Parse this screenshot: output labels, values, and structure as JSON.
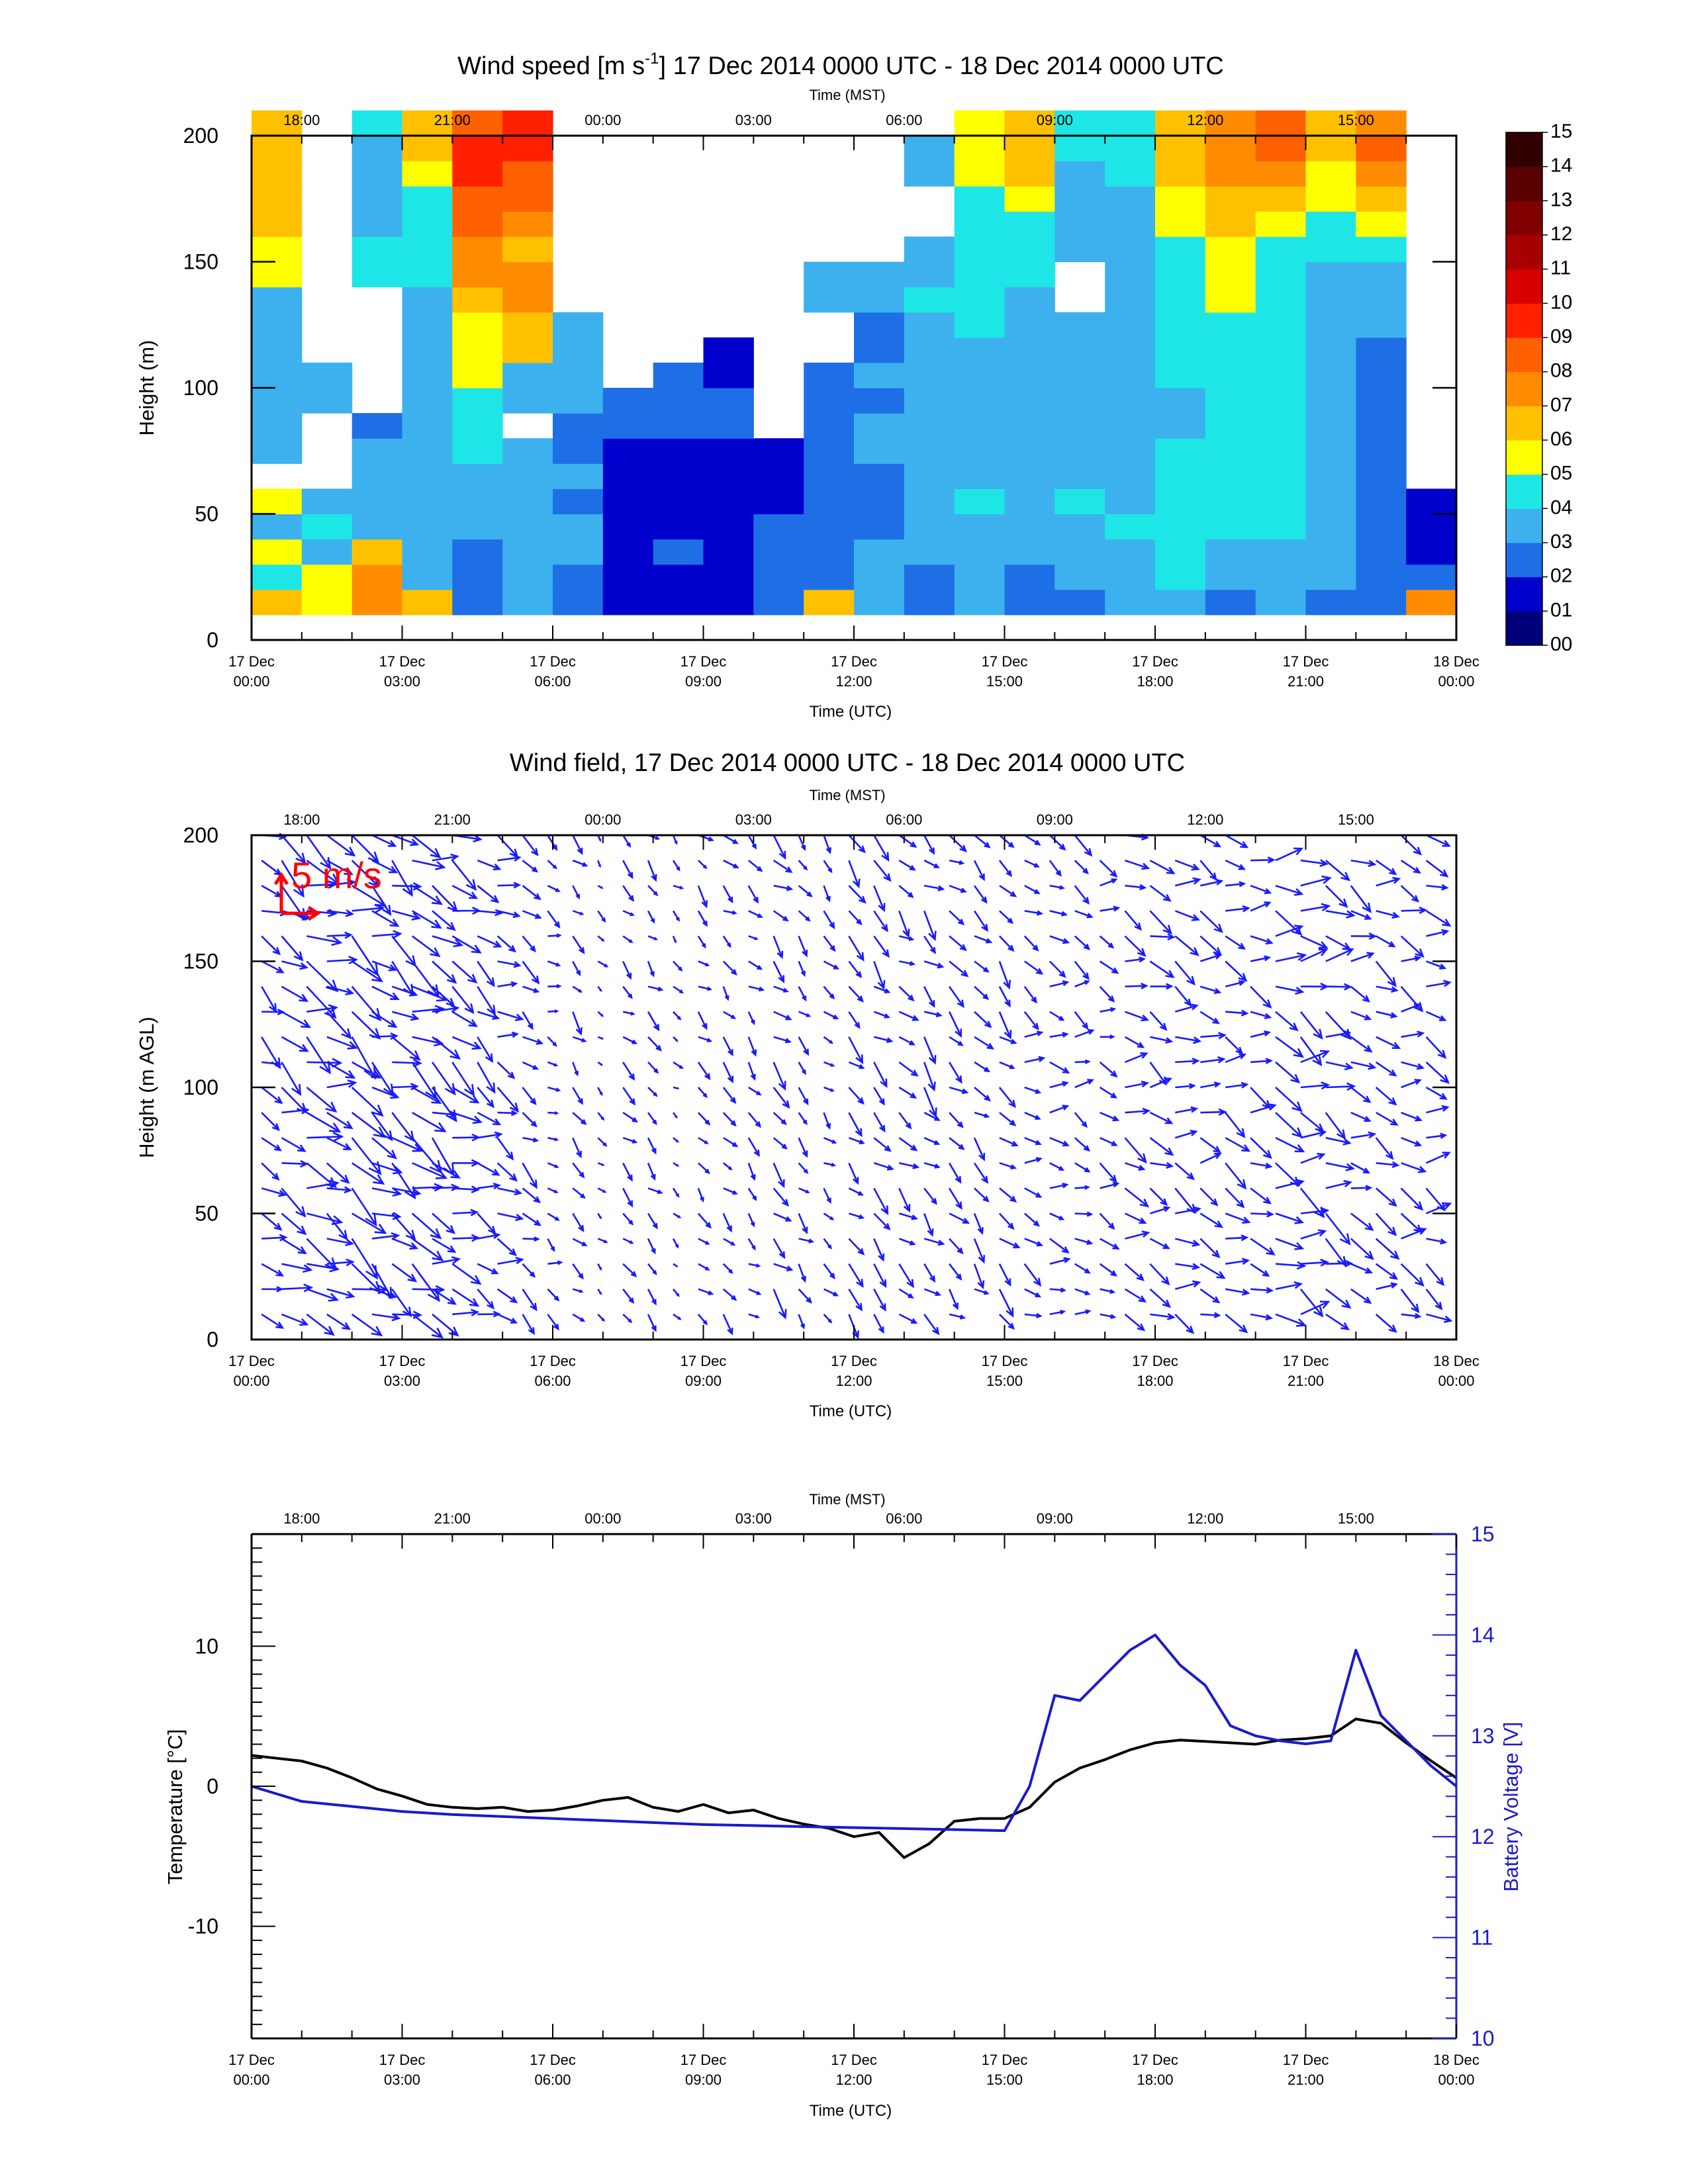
{
  "times": {
    "utc_ticks": [
      {
        "day": "17 Dec",
        "time": "00:00"
      },
      {
        "day": "17 Dec",
        "time": "03:00"
      },
      {
        "day": "17 Dec",
        "time": "06:00"
      },
      {
        "day": "17 Dec",
        "time": "09:00"
      },
      {
        "day": "17 Dec",
        "time": "12:00"
      },
      {
        "day": "17 Dec",
        "time": "15:00"
      },
      {
        "day": "17 Dec",
        "time": "18:00"
      },
      {
        "day": "17 Dec",
        "time": "21:00"
      },
      {
        "day": "18 Dec",
        "time": "00:00"
      }
    ],
    "mst_ticks": [
      "18:00",
      "21:00",
      "00:00",
      "03:00",
      "06:00",
      "09:00",
      "12:00",
      "15:00"
    ],
    "utc_label": "Time (UTC)",
    "mst_label": "Time (MST)"
  },
  "chart_data": [
    {
      "type": "heatmap",
      "title_pre": "Wind speed [m s",
      "title_sup": "-1",
      "title_post": "] 17 Dec 2014 0000 UTC - 18 Dec 2014 0000 UTC",
      "xlabel": "Time (UTC)",
      "x2label": "Time (MST)",
      "ylabel": "Height (m)",
      "xlim_hours_utc": [
        0,
        24
      ],
      "ylim": [
        0,
        200
      ],
      "yticks": [
        "0",
        "50",
        "100",
        "150",
        "200"
      ],
      "colorbar": {
        "labels": [
          "00",
          "01",
          "02",
          "03",
          "04",
          "05",
          "06",
          "07",
          "08",
          "09",
          "10",
          "11",
          "12",
          "13",
          "14",
          "15"
        ],
        "colors": [
          "#00007a",
          "#0000cc",
          "#1e6fe6",
          "#3db1ee",
          "#1ee6e6",
          "#ffff00",
          "#ffc000",
          "#ff8c00",
          "#ff6000",
          "#ff2000",
          "#d80000",
          "#a80000",
          "#800000",
          "#5a0000",
          "#300000"
        ]
      },
      "rows_height_m": [
        10,
        20,
        30,
        40,
        50,
        60,
        70,
        80,
        90,
        100,
        110,
        120,
        130,
        140,
        150,
        160,
        170,
        180,
        190,
        200
      ],
      "columns_hour_utc": [
        0,
        1,
        2,
        3,
        4,
        5,
        6,
        7,
        8,
        9,
        10,
        11,
        12,
        13,
        14,
        15,
        16,
        17,
        18,
        19,
        20,
        21,
        22,
        23
      ],
      "speed_matrix_m_s": [
        [
          6,
          5,
          7,
          6,
          2,
          3,
          2,
          1,
          1,
          1,
          2,
          6,
          3,
          2,
          3,
          2,
          2,
          3,
          3,
          2,
          3,
          2,
          2,
          7
        ],
        [
          4,
          5,
          7,
          3,
          2,
          3,
          2,
          1,
          1,
          1,
          2,
          2,
          3,
          2,
          3,
          2,
          3,
          3,
          4,
          3,
          3,
          3,
          2,
          2
        ],
        [
          5,
          3,
          6,
          3,
          2,
          3,
          3,
          1,
          2,
          1,
          2,
          2,
          3,
          3,
          3,
          3,
          3,
          3,
          4,
          3,
          3,
          3,
          2,
          1
        ],
        [
          3,
          4,
          3,
          3,
          3,
          3,
          3,
          1,
          1,
          1,
          2,
          2,
          2,
          3,
          3,
          3,
          3,
          4,
          4,
          4,
          4,
          3,
          2,
          1
        ],
        [
          5,
          3,
          3,
          3,
          3,
          3,
          2,
          1,
          1,
          1,
          1,
          2,
          2,
          3,
          4,
          3,
          4,
          3,
          4,
          4,
          4,
          3,
          2,
          1
        ],
        [
          0,
          0,
          3,
          3,
          3,
          3,
          3,
          1,
          1,
          1,
          1,
          2,
          2,
          3,
          3,
          3,
          3,
          3,
          4,
          4,
          4,
          3,
          2,
          0
        ],
        [
          3,
          0,
          3,
          3,
          4,
          3,
          2,
          1,
          1,
          1,
          1,
          2,
          3,
          3,
          3,
          3,
          3,
          3,
          4,
          4,
          4,
          3,
          2,
          0
        ],
        [
          3,
          0,
          2,
          3,
          4,
          0,
          2,
          2,
          2,
          2,
          0,
          2,
          3,
          3,
          3,
          3,
          3,
          3,
          3,
          4,
          4,
          3,
          2,
          0
        ],
        [
          3,
          3,
          0,
          3,
          4,
          3,
          3,
          2,
          2,
          2,
          0,
          2,
          2,
          3,
          3,
          3,
          3,
          3,
          3,
          4,
          4,
          3,
          2,
          0
        ],
        [
          3,
          3,
          0,
          3,
          5,
          3,
          3,
          0,
          2,
          1,
          0,
          2,
          3,
          3,
          3,
          3,
          3,
          3,
          4,
          4,
          4,
          3,
          2,
          0
        ],
        [
          3,
          0,
          0,
          3,
          5,
          6,
          3,
          0,
          0,
          1,
          0,
          0,
          2,
          3,
          3,
          3,
          3,
          3,
          4,
          4,
          4,
          3,
          2,
          0
        ],
        [
          3,
          0,
          0,
          3,
          5,
          6,
          3,
          0,
          0,
          0,
          0,
          0,
          2,
          3,
          4,
          3,
          3,
          3,
          4,
          4,
          4,
          3,
          3,
          0
        ],
        [
          3,
          0,
          0,
          3,
          6,
          7,
          0,
          0,
          0,
          0,
          0,
          3,
          3,
          4,
          4,
          3,
          0,
          3,
          4,
          5,
          4,
          3,
          3,
          0
        ],
        [
          5,
          0,
          4,
          4,
          7,
          7,
          0,
          0,
          0,
          0,
          0,
          3,
          3,
          3,
          4,
          4,
          0,
          3,
          4,
          5,
          4,
          3,
          3,
          0
        ],
        [
          5,
          0,
          4,
          4,
          7,
          6,
          0,
          0,
          0,
          0,
          0,
          0,
          0,
          3,
          4,
          4,
          3,
          3,
          4,
          5,
          4,
          4,
          4,
          0
        ],
        [
          6,
          0,
          3,
          4,
          8,
          7,
          0,
          0,
          0,
          0,
          0,
          0,
          0,
          0,
          4,
          4,
          3,
          3,
          5,
          6,
          5,
          4,
          5,
          0
        ],
        [
          6,
          0,
          3,
          4,
          8,
          8,
          0,
          0,
          0,
          0,
          0,
          0,
          0,
          0,
          4,
          5,
          3,
          3,
          5,
          6,
          6,
          5,
          6,
          0
        ],
        [
          6,
          0,
          3,
          5,
          9,
          8,
          0,
          0,
          0,
          0,
          0,
          0,
          0,
          3,
          5,
          6,
          3,
          4,
          6,
          7,
          7,
          5,
          7,
          0
        ],
        [
          6,
          0,
          3,
          6,
          9,
          9,
          0,
          0,
          0,
          0,
          0,
          0,
          0,
          3,
          5,
          6,
          4,
          4,
          6,
          7,
          8,
          6,
          8,
          0
        ],
        [
          6,
          0,
          4,
          6,
          8,
          9,
          0,
          0,
          0,
          0,
          0,
          0,
          0,
          0,
          5,
          6,
          4,
          4,
          6,
          7,
          8,
          6,
          7,
          0
        ]
      ]
    },
    {
      "type": "scatter",
      "marker": "arrow",
      "title": "Wind field, 17 Dec 2014 0000 UTC - 18 Dec 2014 0000 UTC",
      "xlabel": "Time (UTC)",
      "x2label": "Time (MST)",
      "ylabel": "Height (m AGL)",
      "xlim_hours_utc": [
        0,
        24
      ],
      "ylim": [
        0,
        200
      ],
      "yticks": [
        "0",
        "50",
        "100",
        "150",
        "200"
      ],
      "legend": "5 m/s",
      "legend_position": "top-left",
      "series": [
        {
          "color": "#1a1aff",
          "x_hour_utc": [
            0.2,
            0.6,
            1.1,
            1.5,
            2.0,
            2.4,
            2.8,
            3.2,
            3.6,
            4.0,
            4.5,
            4.9,
            5.4,
            5.9,
            6.4,
            6.9,
            7.4,
            7.9,
            8.4,
            8.9,
            9.4,
            9.9,
            10.4,
            10.9,
            11.4,
            11.9,
            12.4,
            12.9,
            13.4,
            13.9,
            14.4,
            14.9,
            15.4,
            15.9,
            16.4,
            16.9,
            17.4,
            17.9,
            18.4,
            18.9,
            19.4,
            19.9,
            20.4,
            20.9,
            21.4,
            21.9,
            22.4,
            22.9,
            23.4
          ],
          "speed_m_s": [
            4,
            5,
            6,
            5,
            6,
            5,
            5,
            6,
            5,
            5,
            4,
            4,
            3,
            2,
            2,
            1,
            2,
            2,
            1,
            2,
            2,
            2,
            3,
            2,
            2,
            3,
            3,
            3,
            3,
            3,
            3,
            3,
            3,
            3,
            3,
            3,
            4,
            4,
            4,
            4,
            4,
            4,
            5,
            5,
            5,
            4,
            4,
            4,
            4
          ]
        }
      ]
    },
    {
      "type": "line",
      "title": "",
      "xlabel": "Time (UTC)",
      "x2label": "Time (MST)",
      "ylabel": "Temperature [°C]",
      "y2label": "Battery Voltage [V]",
      "xlim_hours_utc": [
        0,
        24
      ],
      "ylim": [
        -18,
        18
      ],
      "y2lim": [
        10,
        15
      ],
      "yticks": [
        "-10",
        "0",
        "10"
      ],
      "y2ticks": [
        "10",
        "11",
        "12",
        "13",
        "14",
        "15"
      ],
      "series": [
        {
          "name": "Temperature",
          "axis": "left",
          "color": "#000000",
          "x_hour_utc": [
            0,
            0.5,
            1,
            1.5,
            2,
            2.5,
            3,
            3.5,
            4,
            4.5,
            5,
            5.5,
            6,
            6.5,
            7,
            7.5,
            8,
            8.5,
            9,
            9.5,
            10,
            10.5,
            11,
            11.5,
            12,
            12.5,
            13,
            13.5,
            14,
            14.5,
            15,
            15.5,
            16,
            16.5,
            17,
            17.5,
            18,
            18.5,
            19,
            19.5,
            20,
            20.5,
            21,
            21.5,
            22,
            22.5,
            23,
            23.5,
            24
          ],
          "values": [
            2.2,
            2.0,
            1.8,
            1.3,
            0.6,
            -0.2,
            -0.7,
            -1.3,
            -1.5,
            -1.6,
            -1.5,
            -1.8,
            -1.7,
            -1.4,
            -1.0,
            -0.8,
            -1.5,
            -1.8,
            -1.3,
            -1.9,
            -1.7,
            -2.3,
            -2.7,
            -3.0,
            -3.6,
            -3.3,
            -5.1,
            -4.1,
            -2.5,
            -2.3,
            -2.3,
            -1.5,
            0.3,
            1.3,
            1.9,
            2.6,
            3.1,
            3.3,
            3.2,
            3.1,
            3.0,
            3.3,
            3.4,
            3.6,
            4.8,
            4.5,
            3.1,
            1.8,
            0.6
          ]
        },
        {
          "name": "Battery Voltage",
          "axis": "right",
          "color": "#1a1acc",
          "x_hour_utc": [
            0,
            1,
            2,
            3,
            4,
            5,
            6,
            7,
            8,
            9,
            10,
            11,
            12,
            13,
            14,
            15,
            15.5,
            16,
            16.5,
            17,
            17.5,
            18,
            18.5,
            19,
            19.5,
            20,
            20.5,
            21,
            21.5,
            22,
            22.5,
            23,
            23.5,
            24
          ],
          "values": [
            12.5,
            12.35,
            12.3,
            12.25,
            12.22,
            12.2,
            12.18,
            12.16,
            12.14,
            12.12,
            12.11,
            12.1,
            12.09,
            12.08,
            12.07,
            12.06,
            12.5,
            13.4,
            13.35,
            13.6,
            13.85,
            14.0,
            13.7,
            13.5,
            13.1,
            13.0,
            12.95,
            12.92,
            12.95,
            13.85,
            13.2,
            12.95,
            12.7,
            12.5
          ]
        }
      ]
    }
  ]
}
